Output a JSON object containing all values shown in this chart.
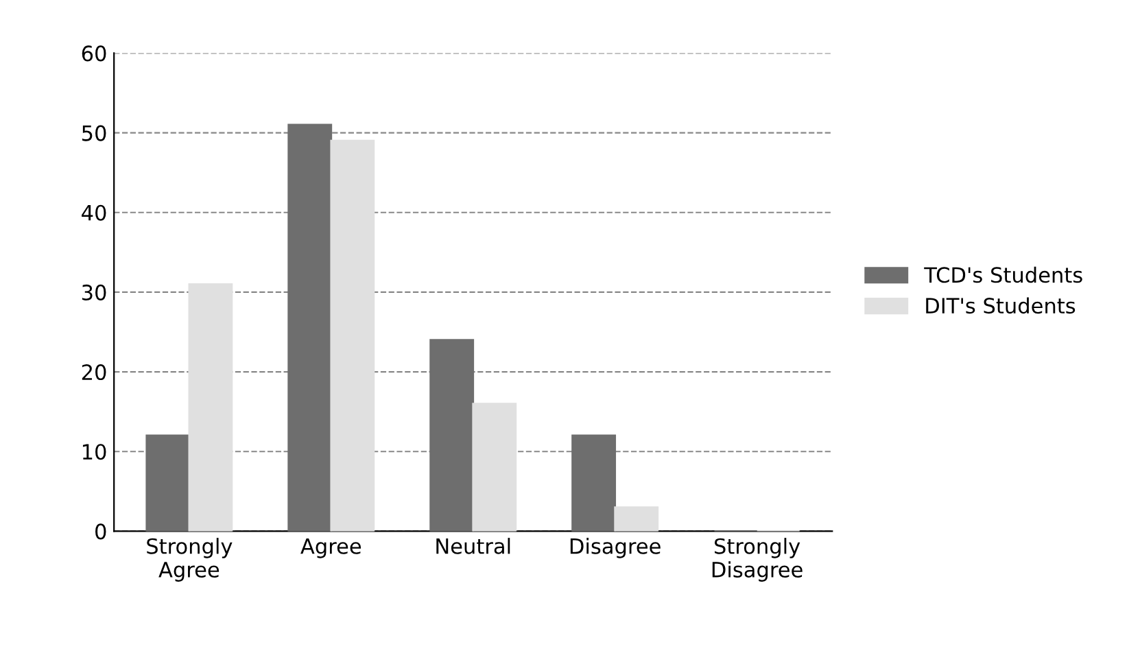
{
  "chart_data": {
    "type": "bar",
    "categories": [
      "Strongly\nAgree",
      "Agree",
      "Neutral",
      "Disagree",
      "Strongly\nDisagree"
    ],
    "series": [
      {
        "name": "TCD's Students",
        "color": "#6e6e6e",
        "values": [
          12,
          51,
          24,
          12,
          0
        ]
      },
      {
        "name": "DIT's Students",
        "color": "#e0e0e0",
        "values": [
          31,
          49,
          16,
          3,
          0
        ]
      }
    ],
    "ylim": [
      0,
      60
    ],
    "yticks": [
      0,
      10,
      20,
      30,
      40,
      50,
      60
    ],
    "grid": "y",
    "legend": "right"
  }
}
